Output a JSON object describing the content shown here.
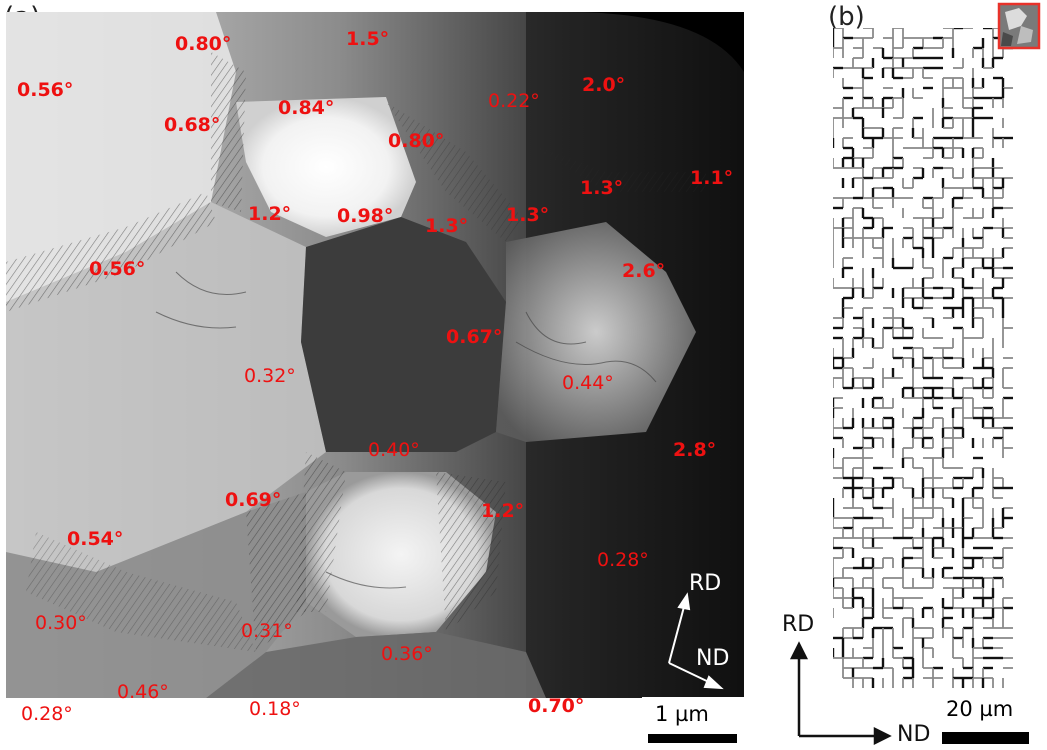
{
  "panel_a": {
    "label": "(a)",
    "annotations": [
      {
        "text": "0.80°",
        "bold": true
      },
      {
        "text": "1.5°",
        "bold": true
      },
      {
        "text": "0.56°",
        "bold": true
      },
      {
        "text": "0.84°",
        "bold": true
      },
      {
        "text": "0.22°",
        "bold": false
      },
      {
        "text": "2.0°",
        "bold": true
      },
      {
        "text": "0.68°",
        "bold": true
      },
      {
        "text": "0.80°",
        "bold": true
      },
      {
        "text": "1.3°",
        "bold": true
      },
      {
        "text": "1.1°",
        "bold": true
      },
      {
        "text": "1.2°",
        "bold": true
      },
      {
        "text": "0.98°",
        "bold": true
      },
      {
        "text": "1.3°",
        "bold": true
      },
      {
        "text": "1.3°",
        "bold": true
      },
      {
        "text": "0.56°",
        "bold": true
      },
      {
        "text": "2.6°",
        "bold": true
      },
      {
        "text": "0.67°",
        "bold": true
      },
      {
        "text": "0.32°",
        "bold": false
      },
      {
        "text": "0.44°",
        "bold": false
      },
      {
        "text": "2.8°",
        "bold": true
      },
      {
        "text": "0.40°",
        "bold": false
      },
      {
        "text": "0.69°",
        "bold": true
      },
      {
        "text": "1.2°",
        "bold": true
      },
      {
        "text": "0.54°",
        "bold": true
      },
      {
        "text": "0.28°",
        "bold": false
      },
      {
        "text": "0.30°",
        "bold": false
      },
      {
        "text": "0.31°",
        "bold": false
      },
      {
        "text": "0.36°",
        "bold": false
      },
      {
        "text": "0.46°",
        "bold": false
      },
      {
        "text": "0.28°",
        "bold": false
      },
      {
        "text": "0.18°",
        "bold": false
      },
      {
        "text": "0.70°",
        "bold": true
      }
    ],
    "orientation": {
      "rd": "RD",
      "nd": "ND"
    },
    "scale_bar": "1 µm"
  },
  "panel_b": {
    "label": "(b)",
    "orientation": {
      "rd": "RD",
      "nd": "ND"
    },
    "scale_bar": "20 µm"
  },
  "colors": {
    "annotation": "#ee1111",
    "grid_high": "#111111",
    "grid_low": "#8a8a8a",
    "inset_border": "#e8322a"
  }
}
